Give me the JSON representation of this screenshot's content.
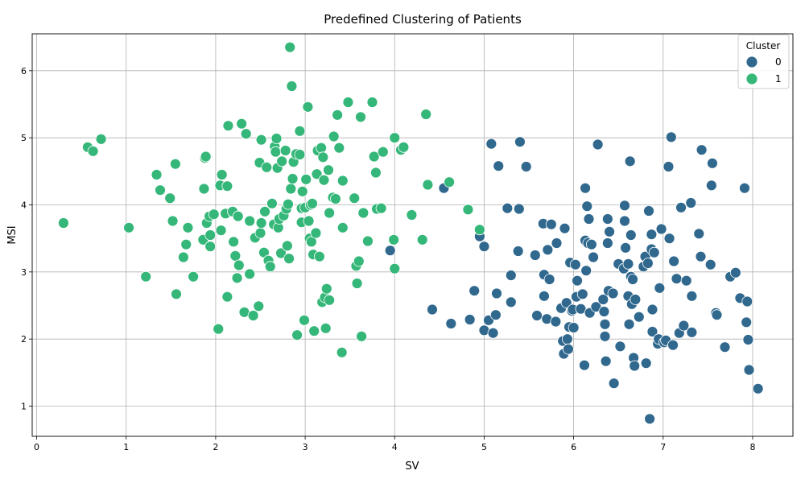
{
  "chart_data": {
    "type": "scatter",
    "title": "Predefined Clustering of Patients",
    "xlabel": "SV",
    "ylabel": "MSI",
    "xlim": [
      -0.05,
      8.45
    ],
    "ylim": [
      0.55,
      6.55
    ],
    "xticks": [
      "0",
      "1",
      "2",
      "3",
      "4",
      "5",
      "6",
      "7",
      "8"
    ],
    "yticks": [
      "1",
      "2",
      "3",
      "4",
      "5",
      "6"
    ],
    "grid": true,
    "legend": {
      "title": "Cluster",
      "placement": "top-right"
    },
    "series": [
      {
        "name": "0",
        "color": "#31688e",
        "points": [
          [
            4.55,
            4.25
          ],
          [
            3.95,
            3.32
          ],
          [
            4.42,
            2.44
          ],
          [
            4.63,
            2.23
          ],
          [
            4.84,
            2.29
          ],
          [
            4.89,
            2.72
          ],
          [
            4.95,
            3.53
          ],
          [
            5.0,
            3.38
          ],
          [
            5.0,
            2.13
          ],
          [
            5.05,
            2.28
          ],
          [
            5.08,
            4.91
          ],
          [
            5.1,
            2.09
          ],
          [
            5.13,
            2.36
          ],
          [
            5.14,
            2.68
          ],
          [
            5.16,
            4.58
          ],
          [
            5.26,
            3.95
          ],
          [
            5.3,
            2.95
          ],
          [
            5.3,
            2.55
          ],
          [
            5.38,
            3.31
          ],
          [
            5.39,
            3.94
          ],
          [
            5.4,
            4.94
          ],
          [
            5.47,
            4.57
          ],
          [
            5.57,
            3.25
          ],
          [
            5.59,
            2.35
          ],
          [
            5.66,
            3.72
          ],
          [
            5.67,
            2.96
          ],
          [
            5.67,
            2.64
          ],
          [
            5.7,
            2.3
          ],
          [
            5.71,
            3.33
          ],
          [
            5.73,
            2.89
          ],
          [
            5.75,
            3.71
          ],
          [
            5.8,
            2.26
          ],
          [
            5.81,
            3.43
          ],
          [
            5.86,
            2.46
          ],
          [
            5.88,
            1.97
          ],
          [
            5.89,
            1.78
          ],
          [
            5.9,
            3.65
          ],
          [
            5.92,
            2.54
          ],
          [
            5.93,
            2.0
          ],
          [
            5.94,
            1.85
          ],
          [
            5.95,
            2.18
          ],
          [
            5.96,
            3.14
          ],
          [
            5.98,
            2.42
          ],
          [
            5.99,
            2.44
          ],
          [
            6.0,
            2.17
          ],
          [
            6.02,
            3.11
          ],
          [
            6.03,
            2.63
          ],
          [
            6.04,
            2.87
          ],
          [
            6.08,
            2.45
          ],
          [
            6.1,
            2.67
          ],
          [
            6.12,
            1.61
          ],
          [
            6.13,
            4.25
          ],
          [
            6.13,
            3.47
          ],
          [
            6.14,
            3.02
          ],
          [
            6.15,
            3.98
          ],
          [
            6.16,
            3.43
          ],
          [
            6.17,
            3.79
          ],
          [
            6.18,
            2.39
          ],
          [
            6.2,
            3.41
          ],
          [
            6.22,
            3.22
          ],
          [
            6.25,
            2.48
          ],
          [
            6.27,
            4.9
          ],
          [
            6.33,
            2.59
          ],
          [
            6.34,
            2.41
          ],
          [
            6.35,
            2.22
          ],
          [
            6.35,
            2.04
          ],
          [
            6.36,
            1.67
          ],
          [
            6.38,
            3.43
          ],
          [
            6.38,
            3.79
          ],
          [
            6.39,
            2.72
          ],
          [
            6.4,
            3.6
          ],
          [
            6.44,
            2.68
          ],
          [
            6.45,
            1.34
          ],
          [
            6.5,
            3.12
          ],
          [
            6.52,
            1.89
          ],
          [
            6.56,
            3.05
          ],
          [
            6.57,
            3.99
          ],
          [
            6.57,
            3.76
          ],
          [
            6.58,
            3.36
          ],
          [
            6.61,
            3.12
          ],
          [
            6.61,
            2.64
          ],
          [
            6.62,
            2.22
          ],
          [
            6.63,
            4.65
          ],
          [
            6.64,
            3.55
          ],
          [
            6.64,
            2.93
          ],
          [
            6.65,
            2.52
          ],
          [
            6.66,
            2.89
          ],
          [
            6.67,
            1.72
          ],
          [
            6.68,
            1.6
          ],
          [
            6.69,
            2.59
          ],
          [
            6.73,
            2.33
          ],
          [
            6.78,
            3.08
          ],
          [
            6.8,
            3.23
          ],
          [
            6.81,
            1.64
          ],
          [
            6.83,
            3.13
          ],
          [
            6.84,
            3.91
          ],
          [
            6.85,
            0.81
          ],
          [
            6.87,
            3.34
          ],
          [
            6.87,
            3.56
          ],
          [
            6.88,
            2.44
          ],
          [
            6.88,
            2.11
          ],
          [
            6.9,
            3.29
          ],
          [
            6.94,
            1.93
          ],
          [
            6.95,
            2.0
          ],
          [
            6.96,
            2.76
          ],
          [
            6.98,
            3.64
          ],
          [
            7.01,
            1.95
          ],
          [
            7.03,
            1.98
          ],
          [
            7.06,
            4.57
          ],
          [
            7.07,
            3.5
          ],
          [
            7.09,
            5.01
          ],
          [
            7.11,
            1.91
          ],
          [
            7.12,
            3.16
          ],
          [
            7.15,
            2.9
          ],
          [
            7.18,
            2.09
          ],
          [
            7.2,
            3.96
          ],
          [
            7.23,
            2.2
          ],
          [
            7.26,
            2.87
          ],
          [
            7.31,
            4.03
          ],
          [
            7.32,
            2.64
          ],
          [
            7.32,
            2.1
          ],
          [
            7.4,
            3.57
          ],
          [
            7.42,
            3.23
          ],
          [
            7.43,
            4.82
          ],
          [
            7.53,
            3.11
          ],
          [
            7.54,
            4.29
          ],
          [
            7.55,
            4.62
          ],
          [
            7.59,
            2.39
          ],
          [
            7.6,
            2.36
          ],
          [
            7.69,
            1.88
          ],
          [
            7.75,
            2.93
          ],
          [
            7.81,
            2.99
          ],
          [
            7.86,
            2.61
          ],
          [
            7.91,
            4.25
          ],
          [
            7.93,
            2.25
          ],
          [
            7.94,
            2.56
          ],
          [
            7.95,
            1.99
          ],
          [
            7.96,
            1.54
          ],
          [
            8.06,
            1.26
          ]
        ]
      },
      {
        "name": "1",
        "color": "#35b779",
        "points": [
          [
            0.3,
            3.73
          ],
          [
            0.57,
            4.86
          ],
          [
            0.63,
            4.8
          ],
          [
            0.72,
            4.98
          ],
          [
            1.03,
            3.66
          ],
          [
            1.22,
            2.93
          ],
          [
            1.34,
            4.45
          ],
          [
            1.38,
            4.22
          ],
          [
            1.49,
            4.1
          ],
          [
            1.52,
            3.76
          ],
          [
            1.55,
            4.61
          ],
          [
            1.56,
            2.67
          ],
          [
            1.64,
            3.22
          ],
          [
            1.67,
            3.41
          ],
          [
            1.69,
            3.66
          ],
          [
            1.75,
            2.93
          ],
          [
            1.86,
            3.48
          ],
          [
            1.87,
            4.24
          ],
          [
            1.88,
            4.7
          ],
          [
            1.89,
            4.72
          ],
          [
            1.9,
            3.73
          ],
          [
            1.93,
            3.83
          ],
          [
            1.94,
            3.55
          ],
          [
            1.94,
            3.38
          ],
          [
            1.98,
            3.86
          ],
          [
            2.03,
            2.15
          ],
          [
            2.05,
            4.29
          ],
          [
            2.06,
            3.62
          ],
          [
            2.07,
            4.45
          ],
          [
            2.11,
            3.87
          ],
          [
            2.13,
            4.28
          ],
          [
            2.13,
            2.63
          ],
          [
            2.14,
            5.18
          ],
          [
            2.19,
            3.9
          ],
          [
            2.2,
            3.45
          ],
          [
            2.22,
            3.24
          ],
          [
            2.24,
            2.91
          ],
          [
            2.25,
            3.83
          ],
          [
            2.26,
            3.1
          ],
          [
            2.29,
            5.21
          ],
          [
            2.32,
            2.4
          ],
          [
            2.34,
            5.06
          ],
          [
            2.38,
            3.76
          ],
          [
            2.38,
            2.97
          ],
          [
            2.42,
            2.35
          ],
          [
            2.44,
            3.51
          ],
          [
            2.48,
            2.49
          ],
          [
            2.49,
            4.63
          ],
          [
            2.5,
            3.58
          ],
          [
            2.51,
            3.73
          ],
          [
            2.51,
            4.97
          ],
          [
            2.54,
            3.29
          ],
          [
            2.55,
            3.9
          ],
          [
            2.57,
            4.56
          ],
          [
            2.59,
            3.17
          ],
          [
            2.61,
            3.08
          ],
          [
            2.63,
            4.02
          ],
          [
            2.65,
            3.71
          ],
          [
            2.66,
            4.87
          ],
          [
            2.67,
            4.79
          ],
          [
            2.68,
            4.99
          ],
          [
            2.69,
            4.55
          ],
          [
            2.7,
            3.66
          ],
          [
            2.71,
            3.79
          ],
          [
            2.73,
            3.28
          ],
          [
            2.74,
            4.65
          ],
          [
            2.76,
            3.84
          ],
          [
            2.78,
            4.81
          ],
          [
            2.79,
            3.94
          ],
          [
            2.8,
            3.39
          ],
          [
            2.81,
            4.01
          ],
          [
            2.82,
            3.2
          ],
          [
            2.83,
            6.35
          ],
          [
            2.84,
            4.24
          ],
          [
            2.85,
            5.77
          ],
          [
            2.86,
            4.39
          ],
          [
            2.87,
            4.64
          ],
          [
            2.9,
            4.76
          ],
          [
            2.91,
            2.06
          ],
          [
            2.94,
            5.1
          ],
          [
            2.94,
            4.75
          ],
          [
            2.96,
            3.74
          ],
          [
            2.96,
            3.95
          ],
          [
            2.97,
            4.2
          ],
          [
            2.99,
            2.28
          ],
          [
            3.0,
            3.96
          ],
          [
            3.01,
            4.38
          ],
          [
            3.03,
            5.46
          ],
          [
            3.04,
            3.76
          ],
          [
            3.05,
            3.5
          ],
          [
            3.06,
            4.0
          ],
          [
            3.07,
            3.45
          ],
          [
            3.08,
            4.02
          ],
          [
            3.09,
            3.26
          ],
          [
            3.1,
            2.12
          ],
          [
            3.12,
            3.58
          ],
          [
            3.13,
            4.46
          ],
          [
            3.14,
            4.81
          ],
          [
            3.16,
            3.23
          ],
          [
            3.18,
            4.85
          ],
          [
            3.19,
            2.55
          ],
          [
            3.2,
            4.71
          ],
          [
            3.21,
            4.37
          ],
          [
            3.22,
            2.62
          ],
          [
            3.23,
            2.16
          ],
          [
            3.24,
            2.75
          ],
          [
            3.26,
            4.52
          ],
          [
            3.27,
            2.58
          ],
          [
            3.27,
            3.88
          ],
          [
            3.31,
            4.11
          ],
          [
            3.32,
            5.02
          ],
          [
            3.34,
            4.09
          ],
          [
            3.36,
            5.34
          ],
          [
            3.38,
            4.85
          ],
          [
            3.41,
            1.8
          ],
          [
            3.42,
            4.36
          ],
          [
            3.42,
            3.66
          ],
          [
            3.48,
            5.53
          ],
          [
            3.55,
            4.1
          ],
          [
            3.57,
            3.09
          ],
          [
            3.58,
            2.83
          ],
          [
            3.6,
            3.16
          ],
          [
            3.62,
            5.31
          ],
          [
            3.63,
            2.04
          ],
          [
            3.65,
            3.88
          ],
          [
            3.7,
            3.46
          ],
          [
            3.75,
            5.53
          ],
          [
            3.77,
            4.72
          ],
          [
            3.79,
            4.48
          ],
          [
            3.8,
            3.94
          ],
          [
            3.85,
            3.95
          ],
          [
            3.87,
            4.79
          ],
          [
            3.99,
            3.48
          ],
          [
            4.0,
            5.0
          ],
          [
            4.0,
            3.05
          ],
          [
            4.07,
            4.82
          ],
          [
            4.1,
            4.86
          ],
          [
            4.19,
            3.85
          ],
          [
            4.31,
            3.48
          ],
          [
            4.35,
            5.35
          ],
          [
            4.37,
            4.3
          ],
          [
            4.61,
            4.34
          ],
          [
            4.82,
            3.93
          ],
          [
            4.95,
            3.63
          ]
        ]
      }
    ]
  }
}
